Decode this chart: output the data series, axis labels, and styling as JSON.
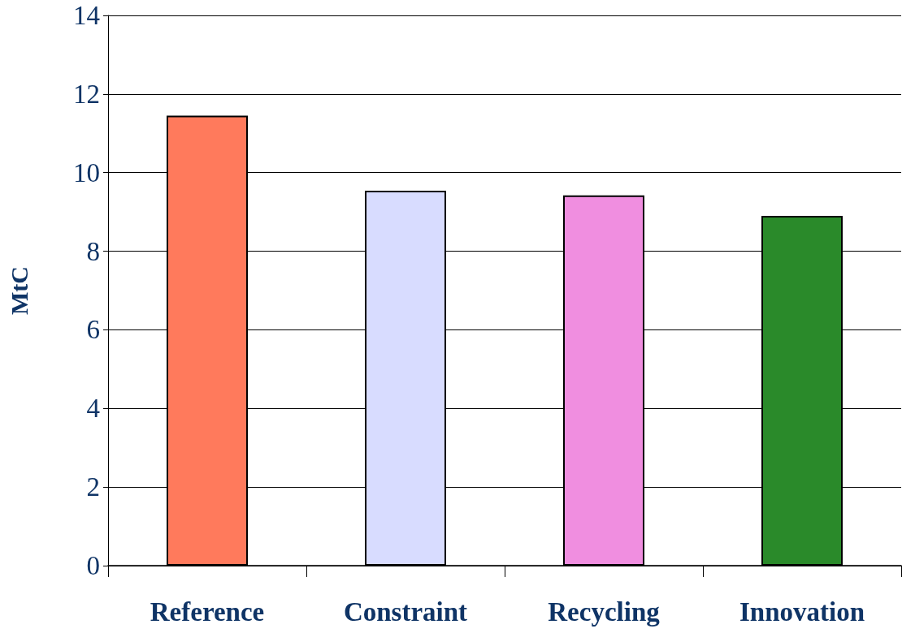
{
  "chart_data": {
    "type": "bar",
    "ylabel": "MtC",
    "categories": [
      "Reference",
      "Constraint",
      "Recycling",
      "Innovation"
    ],
    "values": [
      11.45,
      9.54,
      9.42,
      8.9
    ],
    "colors": [
      "#ff7a5c",
      "#d8dcff",
      "#f08ee0",
      "#2a8a2a"
    ],
    "ylim": [
      0,
      14
    ],
    "yticks": [
      0,
      2,
      4,
      6,
      8,
      10,
      12,
      14
    ],
    "grid": "y"
  }
}
